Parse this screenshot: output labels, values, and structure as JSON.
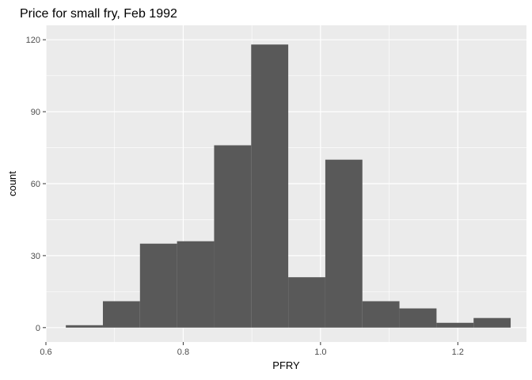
{
  "chart_data": {
    "type": "bar",
    "subtype": "histogram",
    "title": "Price for small fry, Feb 1992",
    "xlabel": "PFRY",
    "ylabel": "count",
    "bin_edges": [
      0.629,
      0.683,
      0.737,
      0.791,
      0.845,
      0.899,
      0.953,
      1.007,
      1.061,
      1.115,
      1.169,
      1.223,
      1.277
    ],
    "values": [
      1,
      11,
      35,
      36,
      76,
      118,
      21,
      70,
      11,
      8,
      2,
      4
    ],
    "xlim": [
      0.6,
      1.3
    ],
    "ylim": [
      -6,
      126
    ],
    "xticks": [
      0.6,
      0.8,
      1.0,
      1.2
    ],
    "xtick_labels": [
      "0.6",
      "0.8",
      "1.0",
      "1.2"
    ],
    "yticks": [
      0,
      30,
      60,
      90,
      120
    ],
    "ytick_labels": [
      "0",
      "30",
      "60",
      "90",
      "120"
    ],
    "grid": true,
    "legend": "none",
    "colors": {
      "panel_background": "#ebebeb",
      "grid_major": "#ffffff",
      "bar_fill": "#595959"
    }
  }
}
